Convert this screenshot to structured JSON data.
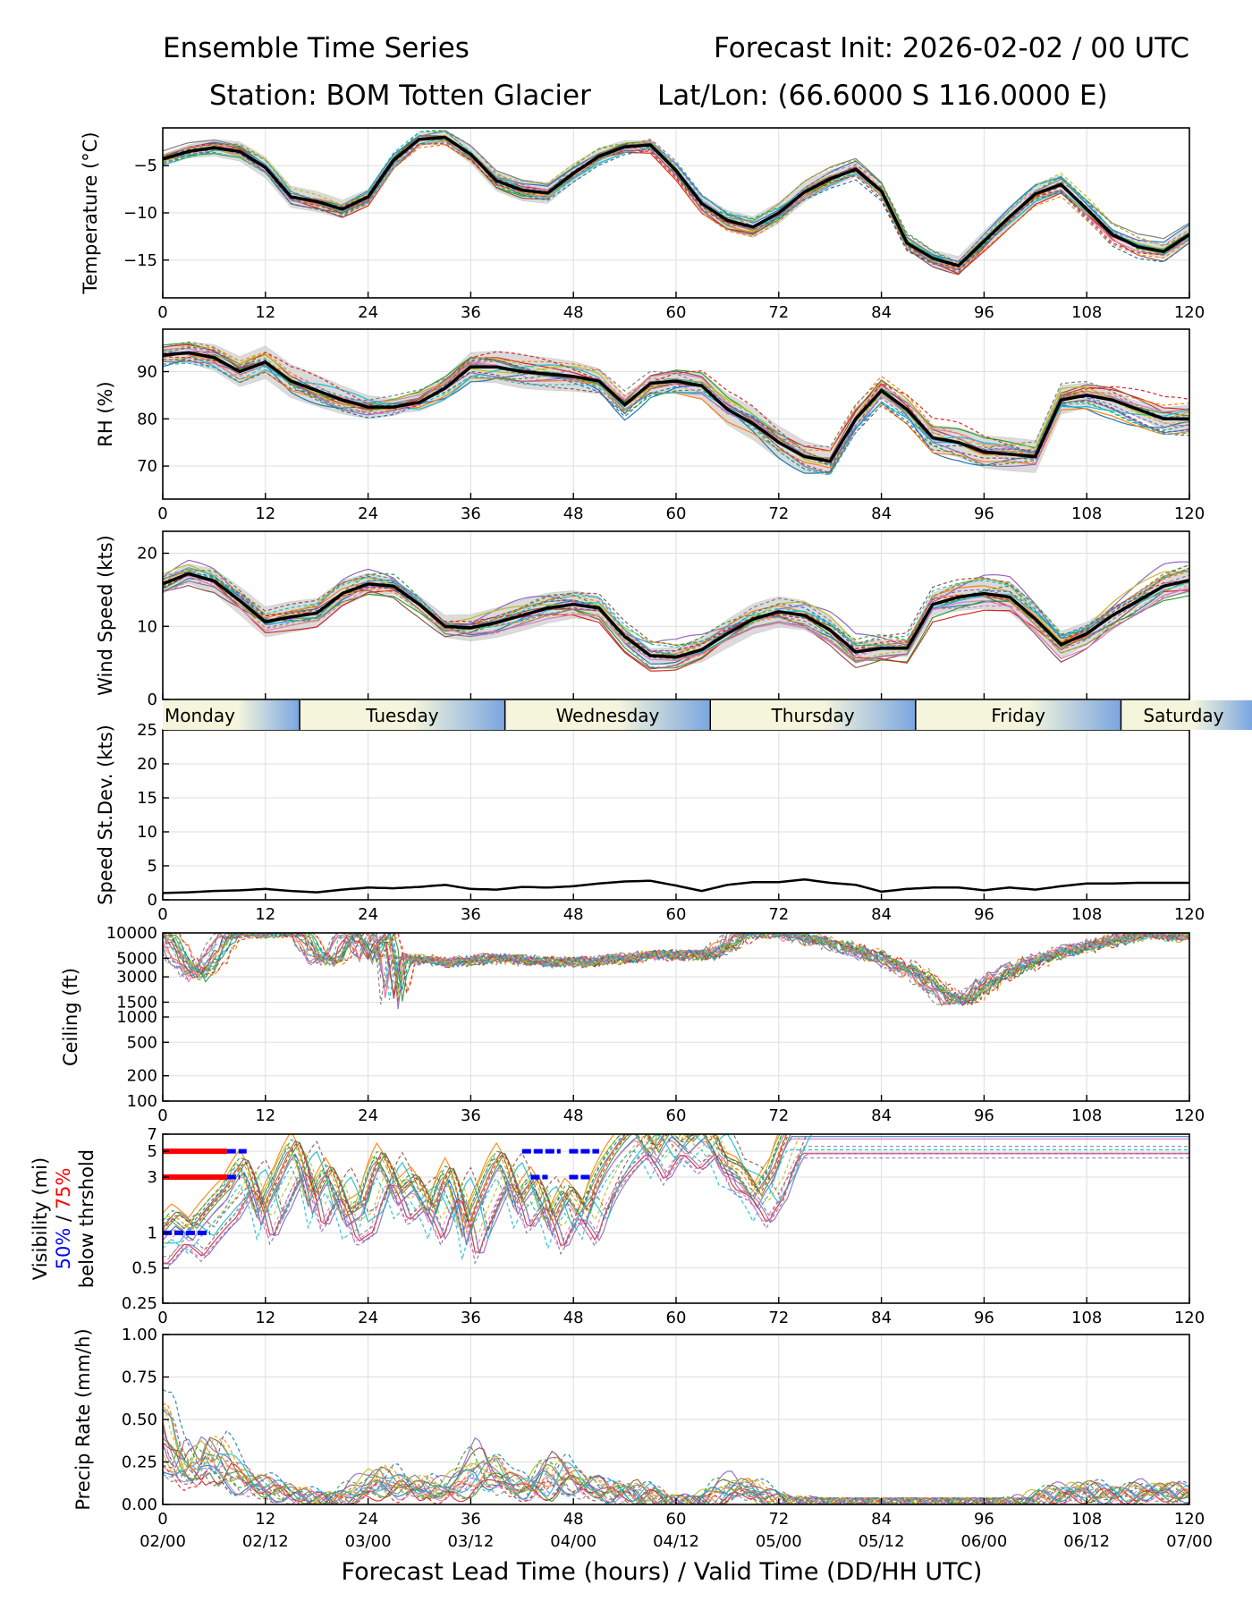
{
  "header": {
    "left_line1": "Ensemble Time Series",
    "right_line1": "Forecast Init: 2026-02-02 / 00 UTC",
    "left_line2": "Station: BOM Totten Glacier",
    "right_line2": "Lat/Lon: (66.6000 S 116.0000 E)"
  },
  "colors": {
    "members": [
      "#1f77b4",
      "#ff7f0e",
      "#2ca02c",
      "#d62728",
      "#9467bd",
      "#8c564b",
      "#e377c2",
      "#7f7f7f",
      "#bcbd22",
      "#17becf"
    ],
    "mean": "#000000",
    "spread": "#cccccc",
    "blue50": "#0000ff",
    "red75": "#ff0000",
    "band_light": "#f5f5dc",
    "band_blue": "#7aa6e0"
  },
  "chart_data": [
    {
      "type": "line",
      "id": "temperature",
      "ylabel": "Temperature (°C)",
      "ylim": [
        -19,
        -1
      ],
      "yticks": [
        -5,
        -10,
        -15
      ],
      "xlim": [
        0,
        120
      ],
      "xticks": [
        0,
        12,
        24,
        36,
        48,
        60,
        72,
        84,
        96,
        108,
        120
      ],
      "series": [
        {
          "name": "ensemble mean",
          "x": [
            0,
            3,
            6,
            9,
            12,
            15,
            18,
            21,
            24,
            27,
            30,
            33,
            36,
            39,
            42,
            45,
            48,
            51,
            54,
            57,
            60,
            63,
            66,
            69,
            72,
            75,
            78,
            81,
            84,
            87,
            90,
            93,
            96,
            99,
            102,
            105,
            108,
            111,
            114,
            117,
            120
          ],
          "y": [
            -4.3,
            -3.5,
            -3.1,
            -3.5,
            -5.2,
            -8.3,
            -8.8,
            -9.6,
            -8.3,
            -4.4,
            -2.2,
            -2.0,
            -3.8,
            -6.6,
            -7.6,
            -7.9,
            -5.8,
            -4.0,
            -3.0,
            -2.8,
            -5.5,
            -9.0,
            -10.8,
            -11.5,
            -10.0,
            -7.8,
            -6.4,
            -5.4,
            -7.7,
            -13.2,
            -14.8,
            -15.6,
            -13.0,
            -10.4,
            -8.0,
            -7.0,
            -9.6,
            -12.3,
            -13.6,
            -14.1,
            -12.3
          ]
        }
      ]
    },
    {
      "type": "line",
      "id": "rh",
      "ylabel": "RH (%)",
      "ylim": [
        63,
        99
      ],
      "yticks": [
        70,
        80,
        90
      ],
      "xlim": [
        0,
        120
      ],
      "xticks": [
        0,
        12,
        24,
        36,
        48,
        60,
        72,
        84,
        96,
        108,
        120
      ],
      "series": [
        {
          "name": "ensemble mean",
          "x": [
            0,
            3,
            6,
            9,
            12,
            15,
            18,
            21,
            24,
            27,
            30,
            33,
            36,
            39,
            42,
            45,
            48,
            51,
            54,
            57,
            60,
            63,
            66,
            69,
            72,
            75,
            78,
            81,
            84,
            87,
            90,
            93,
            96,
            99,
            102,
            105,
            108,
            111,
            114,
            117,
            120
          ],
          "y": [
            93.5,
            94,
            93,
            90,
            92,
            88,
            86,
            84,
            82.5,
            82.5,
            83.5,
            86.5,
            91,
            91,
            90,
            89.5,
            89,
            88,
            83,
            87.5,
            88,
            87,
            82,
            79,
            75,
            72,
            71,
            80,
            86,
            82,
            76,
            75,
            73,
            72.5,
            72,
            84,
            85,
            84,
            82,
            80,
            80
          ]
        }
      ]
    },
    {
      "type": "line",
      "id": "wind_speed",
      "ylabel": "Wind Speed (kts)",
      "ylim": [
        0,
        23
      ],
      "yticks": [
        0,
        10,
        20
      ],
      "xlim": [
        0,
        120
      ],
      "xticks": [
        0,
        12,
        24,
        36,
        48,
        60,
        72,
        84,
        96,
        108,
        120
      ],
      "series": [
        {
          "name": "ensemble mean",
          "x": [
            0,
            3,
            6,
            9,
            12,
            15,
            18,
            21,
            24,
            27,
            30,
            33,
            36,
            39,
            42,
            45,
            48,
            51,
            54,
            57,
            60,
            63,
            66,
            69,
            72,
            75,
            78,
            81,
            84,
            87,
            90,
            93,
            96,
            99,
            102,
            105,
            108,
            111,
            114,
            117,
            120
          ],
          "y": [
            15.8,
            17.2,
            16.2,
            13.5,
            10.6,
            11.3,
            11.8,
            14.5,
            15.8,
            15.5,
            13.0,
            10.0,
            9.8,
            10.5,
            11.5,
            12.5,
            13.0,
            12.5,
            8.6,
            6.0,
            5.8,
            6.8,
            9.0,
            11.0,
            12.0,
            11.5,
            9.5,
            6.5,
            7.0,
            7.0,
            13.0,
            14.0,
            14.5,
            14.0,
            11.0,
            7.5,
            9.0,
            11.5,
            13.5,
            15.5,
            16.3
          ]
        }
      ]
    },
    {
      "type": "line",
      "id": "speed_stdev",
      "ylabel": "Speed St.Dev. (kts)",
      "ylim": [
        0,
        25
      ],
      "yticks": [
        0,
        5,
        10,
        15,
        20,
        25
      ],
      "xlim": [
        0,
        120
      ],
      "xticks": [
        0,
        12,
        24,
        36,
        48,
        60,
        72,
        84,
        96,
        108,
        120
      ],
      "series": [
        {
          "name": "speed standard deviation",
          "x": [
            0,
            3,
            6,
            9,
            12,
            15,
            18,
            21,
            24,
            27,
            30,
            33,
            36,
            39,
            42,
            45,
            48,
            51,
            54,
            57,
            60,
            63,
            66,
            69,
            72,
            75,
            78,
            81,
            84,
            87,
            90,
            93,
            96,
            99,
            102,
            105,
            108,
            111,
            114,
            117,
            120
          ],
          "y": [
            1.0,
            1.1,
            1.3,
            1.4,
            1.6,
            1.3,
            1.1,
            1.5,
            1.8,
            1.7,
            1.9,
            2.2,
            1.6,
            1.5,
            1.9,
            1.8,
            2.0,
            2.4,
            2.7,
            2.8,
            2.1,
            1.3,
            2.2,
            2.6,
            2.6,
            3.0,
            2.5,
            2.2,
            1.2,
            1.6,
            1.8,
            1.8,
            1.4,
            1.8,
            1.5,
            2.0,
            2.4,
            2.4,
            2.5,
            2.5,
            2.5
          ]
        }
      ]
    },
    {
      "type": "line",
      "id": "ceiling",
      "ylabel": "Ceiling (ft)",
      "yscale": "log",
      "ylim": [
        100,
        10000
      ],
      "yticks": [
        100,
        200,
        500,
        1000,
        1500,
        3000,
        5000,
        10000
      ],
      "ytick_labels": [
        "100",
        "200",
        "500",
        "1000",
        "1500",
        "3000",
        "5000",
        "10000"
      ],
      "xlim": [
        0,
        120
      ],
      "xticks": [
        0,
        12,
        24,
        36,
        48,
        60,
        72,
        84,
        96,
        108,
        120
      ],
      "series": [
        {
          "name": "member ceiling traces (typical)",
          "x": [
            0,
            2,
            4,
            6,
            8,
            10,
            16,
            18,
            20,
            22,
            24,
            26,
            27,
            28,
            30,
            34,
            38,
            42,
            46,
            50,
            54,
            58,
            62,
            64,
            66,
            68,
            70,
            72,
            92,
            94,
            116,
            118,
            120
          ],
          "y": [
            10000,
            5000,
            3000,
            5000,
            10000,
            10000,
            10000,
            5000,
            4500,
            10000,
            5000,
            10000,
            1300,
            5000,
            4800,
            4500,
            5000,
            4800,
            4500,
            4600,
            5000,
            5500,
            5500,
            5500,
            7000,
            10000,
            10000,
            10000,
            1600,
            1600,
            10000,
            9000,
            9500
          ]
        }
      ]
    },
    {
      "type": "line",
      "id": "visibility",
      "ylabel_parts": [
        "Visibility (mi)",
        "50%",
        " / ",
        "75%",
        "below thrshold"
      ],
      "yscale": "log",
      "ylim": [
        0.25,
        7
      ],
      "yticks": [
        0.25,
        0.5,
        1,
        3,
        5,
        7
      ],
      "ytick_labels": [
        "0.25",
        "0.5",
        "1",
        "3",
        "5",
        "7"
      ],
      "xlim": [
        0,
        120
      ],
      "xticks": [
        0,
        12,
        24,
        36,
        48,
        60,
        72,
        84,
        96,
        108,
        120
      ],
      "thresholds": {
        "red75": [
          {
            "x0": 0,
            "x1": 7.5,
            "y": 5
          },
          {
            "x0": 0,
            "x1": 7.5,
            "y": 3
          }
        ],
        "blue50": [
          {
            "x0": 7.5,
            "x1": 9.8,
            "y": 5
          },
          {
            "x0": 7.5,
            "x1": 9,
            "y": 3
          },
          {
            "x0": 0,
            "x1": 5.5,
            "y": 1
          },
          {
            "x0": 42,
            "x1": 46.5,
            "y": 5
          },
          {
            "x0": 47.5,
            "x1": 51,
            "y": 5
          },
          {
            "x0": 43,
            "x1": 45,
            "y": 3
          },
          {
            "x0": 47.5,
            "x1": 50,
            "y": 3
          }
        ]
      },
      "series": [
        {
          "name": "member visibility traces (typical)",
          "x": [
            0,
            2,
            4,
            6,
            8,
            10,
            12,
            14,
            16,
            18,
            20,
            22,
            24,
            26,
            28,
            30,
            32,
            34,
            36,
            38,
            40,
            42,
            44,
            46,
            48,
            50,
            52,
            54,
            56,
            58,
            60,
            62,
            64,
            66,
            68,
            70,
            72,
            74
          ],
          "y": [
            0.8,
            1.2,
            0.9,
            1.4,
            2.0,
            3.5,
            1.2,
            2.5,
            5.0,
            1.5,
            3.0,
            1.2,
            1.5,
            4.0,
            1.8,
            2.5,
            1.2,
            3.0,
            0.8,
            2.0,
            4.0,
            1.5,
            2.5,
            1.0,
            2.0,
            1.2,
            3.0,
            5.0,
            7.0,
            4.0,
            7.0,
            5.0,
            7.0,
            3.5,
            3.0,
            1.7,
            3.0,
            7.0
          ]
        }
      ]
    },
    {
      "type": "line",
      "id": "precip",
      "ylabel": "Precip Rate (mm/h)",
      "ylim": [
        0,
        1
      ],
      "yticks": [
        0.0,
        0.25,
        0.5,
        0.75,
        1.0
      ],
      "ytick_labels": [
        "0.00",
        "0.25",
        "0.50",
        "0.75",
        "1.00"
      ],
      "xlim": [
        0,
        120
      ],
      "xticks": [
        0,
        12,
        24,
        36,
        48,
        60,
        72,
        84,
        96,
        108,
        120
      ],
      "xticklabels_valid": [
        "02/00",
        "02/12",
        "03/00",
        "03/12",
        "04/00",
        "04/12",
        "05/00",
        "05/12",
        "06/00",
        "06/12",
        "07/00"
      ],
      "xlabel": "Forecast Lead Time (hours) / Valid Time (DD/HH UTC)",
      "series": [
        {
          "name": "member precip traces (typical)",
          "x": [
            0,
            1,
            2,
            3,
            4,
            5,
            6,
            8,
            10,
            12,
            14,
            16,
            18,
            20,
            22,
            24,
            26,
            28,
            30,
            32,
            34,
            36,
            38,
            40,
            42,
            44,
            46,
            48,
            50,
            52,
            54,
            56,
            58,
            60,
            64,
            66,
            68,
            70,
            72,
            76,
            80,
            100,
            104,
            108,
            112,
            116,
            120
          ],
          "y": [
            0.5,
            0.3,
            0.2,
            0.15,
            0.25,
            0.2,
            0.3,
            0.2,
            0.12,
            0.1,
            0.08,
            0.05,
            0.03,
            0.02,
            0.04,
            0.1,
            0.15,
            0.08,
            0.12,
            0.05,
            0.1,
            0.15,
            0.25,
            0.12,
            0.1,
            0.08,
            0.2,
            0.15,
            0.08,
            0.1,
            0.05,
            0.08,
            0.03,
            0.01,
            0.02,
            0.08,
            0.12,
            0.05,
            0.02,
            0.0,
            0.0,
            0.0,
            0.05,
            0.08,
            0.05,
            0.08,
            0.06
          ]
        }
      ]
    }
  ],
  "day_band": {
    "days": [
      "Monday",
      "Tuesday",
      "Wednesday",
      "Thursday",
      "Friday",
      "Saturday"
    ],
    "boundaries_hours": [
      16,
      40,
      64,
      88,
      112
    ]
  }
}
